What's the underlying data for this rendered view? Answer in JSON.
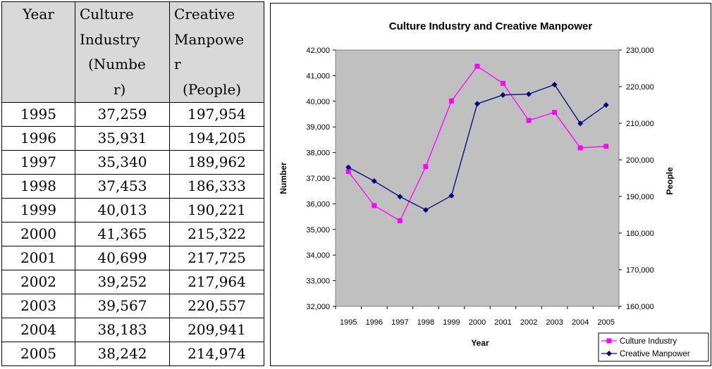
{
  "table": {
    "headers": [
      {
        "lines": [
          "Year"
        ]
      },
      {
        "lines": [
          "Culture",
          "Industry",
          "(Numbe",
          "r)"
        ]
      },
      {
        "lines": [
          "Creative",
          "Manpowe",
          "r",
          "(People)"
        ]
      }
    ],
    "rows": [
      [
        "1995",
        "37,259",
        "197,954"
      ],
      [
        "1996",
        "35,931",
        "194,205"
      ],
      [
        "1997",
        "35,340",
        "189,962"
      ],
      [
        "1998",
        "37,453",
        "186,333"
      ],
      [
        "1999",
        "40,013",
        "190,221"
      ],
      [
        "2000",
        "41,365",
        "215,322"
      ],
      [
        "2001",
        "40,699",
        "217,725"
      ],
      [
        "2002",
        "39,252",
        "217,964"
      ],
      [
        "2003",
        "39,567",
        "220,557"
      ],
      [
        "2004",
        "38,183",
        "209,941"
      ],
      [
        "2005",
        "38,242",
        "214,974"
      ]
    ]
  },
  "chart_data": {
    "type": "line",
    "title": "Culture Industry and Creative Manpower",
    "xlabel": "Year",
    "ylabel": "Number",
    "y2label": "People",
    "categories": [
      "1995",
      "1996",
      "1997",
      "1998",
      "1999",
      "2000",
      "2001",
      "2002",
      "2003",
      "2004",
      "2005"
    ],
    "ylim": [
      32000,
      42000
    ],
    "y2lim": [
      160000,
      230000
    ],
    "yticks": [
      "32,000",
      "33,000",
      "34,000",
      "35,000",
      "36,000",
      "37,000",
      "38,000",
      "39,000",
      "40,000",
      "41,000",
      "42,000"
    ],
    "y2ticks": [
      "160,000",
      "170,000",
      "180,000",
      "190,000",
      "200,000",
      "210,000",
      "220,000",
      "230,000"
    ],
    "legend_position": "bottom-right",
    "plot_background": "#c0c0c0",
    "series": [
      {
        "name": "Culture Industry",
        "axis": "left",
        "color": "#ff00ff",
        "marker": "square",
        "values": [
          37259,
          35931,
          35340,
          37453,
          40013,
          41365,
          40699,
          39252,
          39567,
          38183,
          38242
        ]
      },
      {
        "name": "Creative Manpower",
        "axis": "right",
        "color": "#000080",
        "marker": "diamond",
        "values": [
          197954,
          194205,
          189962,
          186333,
          190221,
          215322,
          217725,
          217964,
          220557,
          209941,
          214974
        ]
      }
    ]
  }
}
